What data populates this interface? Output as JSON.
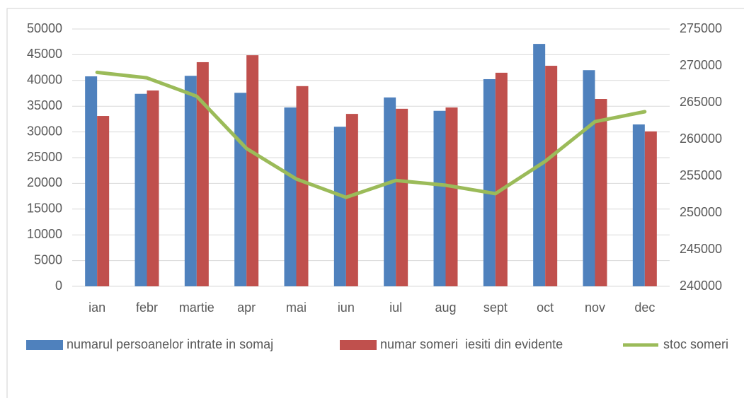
{
  "chart_data": {
    "type": "bar",
    "categories": [
      "ian",
      "febr",
      "martie",
      "apr",
      "mai",
      "iun",
      "iul",
      "aug",
      "sept",
      "oct",
      "nov",
      "dec"
    ],
    "series": [
      {
        "name": "numarul persoanelor intrate in somaj",
        "color": "#4f81bd",
        "type": "bar",
        "values": [
          40800,
          37400,
          40900,
          37600,
          34750,
          31000,
          36700,
          34100,
          40250,
          47100,
          42000,
          31450
        ]
      },
      {
        "name": "numar someri  iesiti din evidente",
        "color": "#c0504d",
        "type": "bar",
        "values": [
          33100,
          38050,
          43550,
          44900,
          38900,
          33500,
          34500,
          34750,
          41500,
          42850,
          36400,
          30100
        ]
      },
      {
        "name": "stoc someri",
        "color": "#9bbb59",
        "type": "line",
        "axis": "y2",
        "values": [
          269100,
          268350,
          265850,
          258750,
          254600,
          252100,
          254400,
          253750,
          252600,
          257000,
          262400,
          263750
        ]
      }
    ],
    "ylim": [
      0,
      50000
    ],
    "yticks": [
      0,
      5000,
      10000,
      15000,
      20000,
      25000,
      30000,
      35000,
      40000,
      45000,
      50000
    ],
    "y2lim": [
      240000,
      275000
    ],
    "y2ticks": [
      240000,
      245000,
      250000,
      255000,
      260000,
      265000,
      270000,
      275000
    ],
    "grid": true,
    "legend": "bottom"
  }
}
